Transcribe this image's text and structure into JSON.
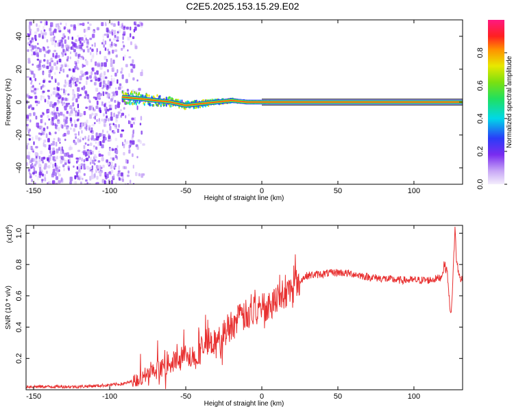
{
  "title": "C2E5.2025.153.15.29.E02",
  "colors": {
    "signal_line": "#e83030",
    "noise_purple": "#7a2cf0",
    "frame": "#000000"
  },
  "chart_data": [
    {
      "type": "heatmap",
      "xlabel": "Height of straight line (km)",
      "ylabel": "Frequency (Hz)",
      "xlim": [
        -155,
        132
      ],
      "ylim": [
        -50,
        50
      ],
      "xticks": [
        "-150",
        "-100",
        "-50",
        "0",
        "50",
        "100"
      ],
      "yticks": [
        "-40",
        "-20",
        "0",
        "20",
        "40"
      ],
      "colorbar": {
        "label": "Normalized spectral amplitude",
        "range": [
          0,
          1
        ],
        "ticks": [
          "0.0",
          "0.2",
          "0.4",
          "0.6",
          "0.8"
        ]
      },
      "features": {
        "noise_region_x": [
          -155,
          -88
        ],
        "signal_line_x": [
          -92,
          132
        ],
        "signal_frequency_hz": [
          3,
          2,
          1,
          0,
          -2,
          -1,
          0,
          1,
          0,
          0,
          0,
          0,
          0
        ],
        "signal_frequency_x": [
          -92,
          -80,
          -70,
          -60,
          -50,
          -40,
          -30,
          -20,
          -10,
          0,
          50,
          100,
          132
        ]
      }
    },
    {
      "type": "line",
      "xlabel": "Height of straight line (km)",
      "ylabel": "SNR (10 * v/v)",
      "scale_label": "(x10",
      "scale_exp": "4",
      "xlim": [
        -155,
        132
      ],
      "ylim": [
        0,
        1.05
      ],
      "xticks": [
        "-150",
        "-100",
        "-50",
        "0",
        "50",
        "100"
      ],
      "yticks": [
        "0.2",
        "0.4",
        "0.6",
        "0.8",
        "1.0"
      ],
      "series": [
        {
          "x": [
            -155,
            -140,
            -120,
            -100,
            -90,
            -80,
            -70,
            -60,
            -50,
            -45,
            -40,
            -35,
            -30,
            -25,
            -20,
            -15,
            -10,
            -5,
            0,
            10,
            20,
            25,
            30,
            40,
            50,
            60,
            70,
            80,
            90,
            100,
            110,
            115,
            118,
            120,
            122,
            123,
            124,
            125,
            126,
            127,
            128,
            130,
            132
          ],
          "y": [
            0.02,
            0.02,
            0.02,
            0.03,
            0.04,
            0.07,
            0.12,
            0.17,
            0.22,
            0.19,
            0.25,
            0.33,
            0.28,
            0.36,
            0.42,
            0.45,
            0.48,
            0.5,
            0.52,
            0.58,
            0.64,
            0.7,
            0.73,
            0.74,
            0.75,
            0.74,
            0.72,
            0.71,
            0.7,
            0.7,
            0.7,
            0.71,
            0.72,
            0.8,
            0.75,
            0.6,
            0.5,
            0.55,
            0.8,
            1.04,
            0.82,
            0.72,
            0.7
          ]
        }
      ]
    }
  ]
}
